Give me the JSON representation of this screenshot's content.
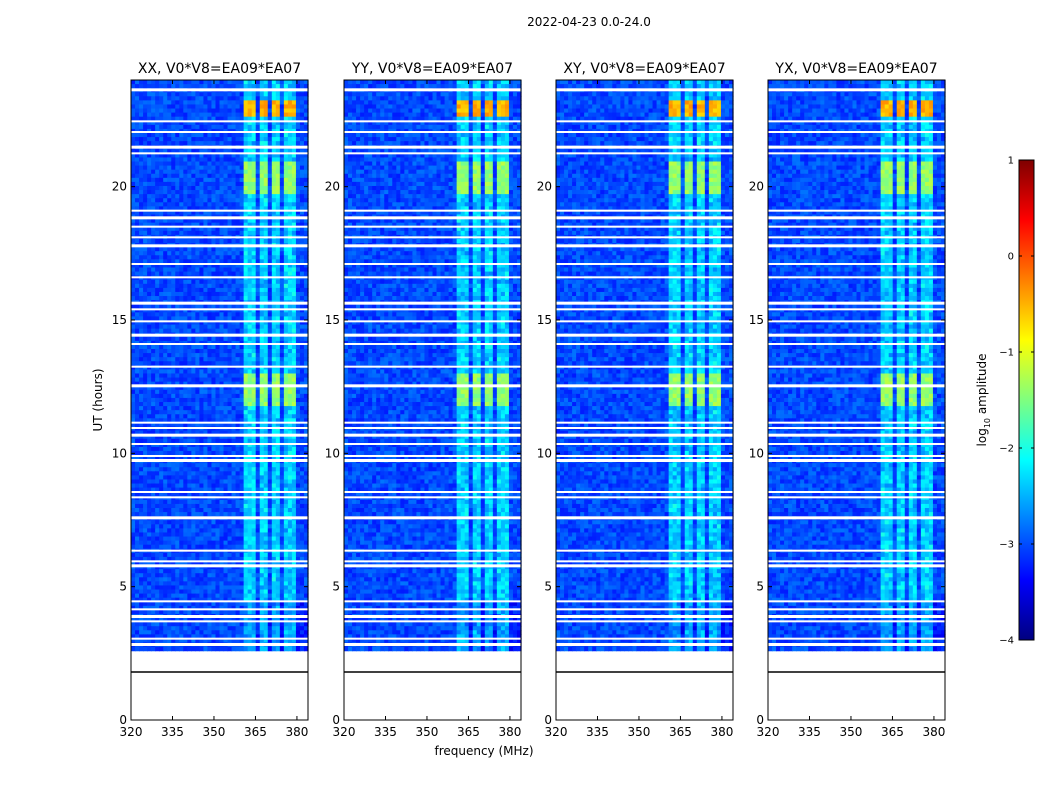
{
  "figure": {
    "suptitle": "2022-04-23 0.0-24.0"
  },
  "chart_data": {
    "type": "heatmap",
    "xlabel": "frequency (MHz)",
    "ylabel": "UT (hours)",
    "xlim": [
      320,
      384
    ],
    "ylim": [
      0,
      24
    ],
    "xticks": [
      "320",
      "335",
      "350",
      "365",
      "380"
    ],
    "yticks": [
      "0",
      "5",
      "10",
      "15",
      "20"
    ],
    "xtick_values": [
      320,
      335,
      350,
      365,
      380
    ],
    "ytick_values": [
      0,
      5,
      10,
      15,
      20
    ],
    "data_start_hours": 2.6,
    "data_end_hours": 24,
    "no_data_line_hours": 1.8,
    "panels": [
      {
        "title": "XX, V0*V8=EA09*EA07",
        "polarization": "XX",
        "baseline": "V0*V8=EA09*EA07"
      },
      {
        "title": "YY, V0*V8=EA09*EA07",
        "polarization": "YY",
        "baseline": "V0*V8=EA09*EA07"
      },
      {
        "title": "XY, V0*V8=EA09*EA07",
        "polarization": "XY",
        "baseline": "V0*V8=EA09*EA07"
      },
      {
        "title": "YX, V0*V8=EA09*EA07",
        "polarization": "YX",
        "baseline": "V0*V8=EA09*EA07"
      }
    ],
    "rfi_bands_mhz": [
      [
        361,
        365
      ],
      [
        366,
        369.5
      ],
      [
        371,
        374
      ],
      [
        375.5,
        379.5
      ]
    ],
    "bright_rfi_times_hours": [
      {
        "start": 22.9,
        "end": 23.1,
        "level": -0.3
      },
      {
        "start": 20.0,
        "end": 20.8,
        "level": -1.2
      },
      {
        "start": 12.0,
        "end": 12.9,
        "level": -1.2
      }
    ],
    "flagged_rows_hours": [
      23.65,
      22.45,
      22.05,
      21.5,
      21.25,
      19.1,
      18.85,
      18.5,
      18.1,
      17.8,
      17.1,
      16.6,
      15.65,
      15.4,
      14.95,
      14.45,
      14.1,
      13.25,
      12.55,
      11.15,
      10.95,
      10.7,
      10.35,
      9.9,
      9.75,
      8.55,
      8.35,
      7.6,
      6.35,
      5.95,
      5.8,
      4.45,
      4.15,
      3.9,
      3.7,
      3.05,
      2.85
    ],
    "colorbar": {
      "label": "log10 amplitude",
      "label_base": "log",
      "label_sub": "10",
      "label_rest": " amplitude",
      "range": [
        -4,
        1
      ],
      "ticks": [
        "1",
        "0",
        "−1",
        "−2",
        "−3",
        "−4"
      ],
      "tick_values": [
        1,
        0,
        -1,
        -2,
        -3,
        -4
      ],
      "colormap": "jet",
      "colormap_stops": [
        "#00007f",
        "#0000ff",
        "#007fff",
        "#00ffff",
        "#7fff7f",
        "#ffff00",
        "#ff7f00",
        "#ff0000",
        "#7f0000"
      ]
    }
  }
}
